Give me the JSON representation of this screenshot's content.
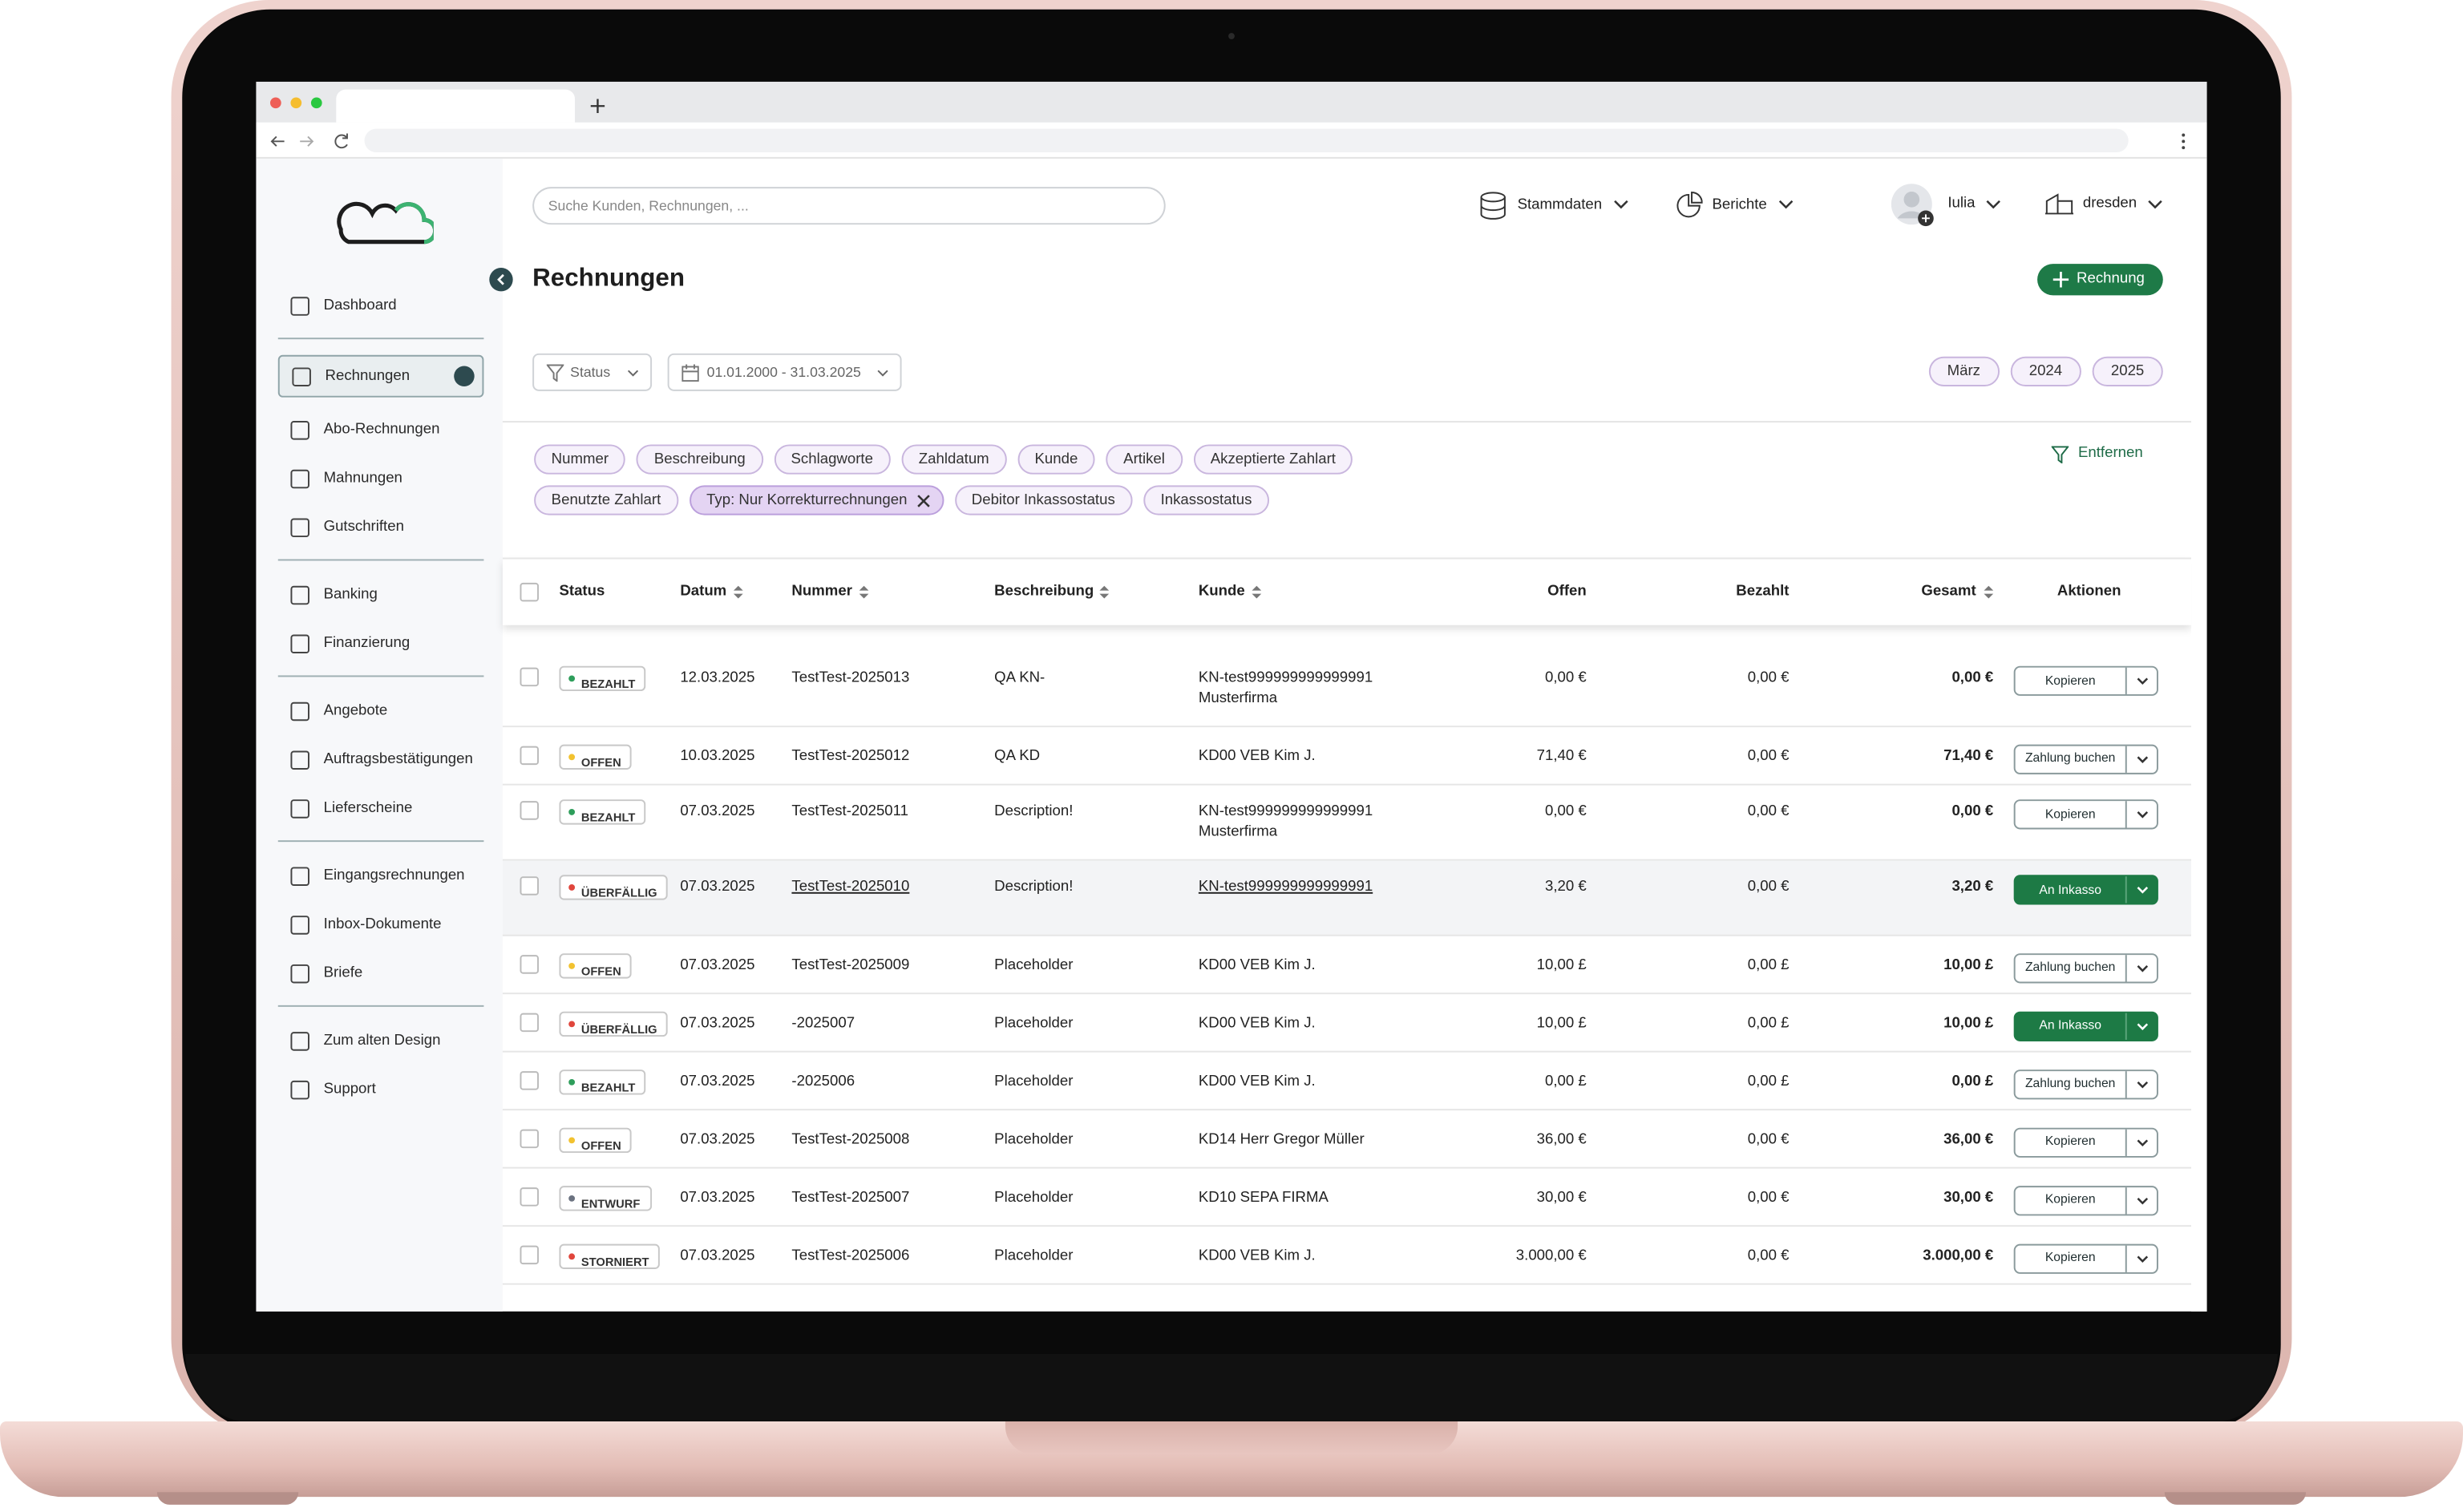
{
  "header": {
    "search_placeholder": "Suche Kunden, Rechnungen, ...",
    "menu": [
      "Stammdaten",
      "Berichte"
    ],
    "user": "Iulia",
    "company": "dresden"
  },
  "sidebar": {
    "groups": [
      [
        "Dashboard"
      ],
      [
        "Rechnungen",
        "Abo-Rechnungen",
        "Mahnungen",
        "Gutschriften"
      ],
      [
        "Banking",
        "Finanzierung"
      ],
      [
        "Angebote",
        "Auftragsbestätigungen",
        "Lieferscheine"
      ],
      [
        "Eingangsrechnungen",
        "Inbox-Dokumente",
        "Briefe"
      ],
      [
        "Zum alten Design",
        "Support"
      ]
    ],
    "active": "Rechnungen"
  },
  "page": {
    "title": "Rechnungen",
    "new_button": "Rechnung",
    "status_filter": "Status",
    "date_range": "01.01.2000 - 31.03.2025",
    "quick_periods": [
      "März",
      "2024",
      "2025"
    ],
    "filter_chips": [
      [
        {
          "label": "Nummer"
        },
        {
          "label": "Beschreibung"
        },
        {
          "label": "Schlagworte"
        },
        {
          "label": "Zahldatum"
        },
        {
          "label": "Kunde"
        },
        {
          "label": "Artikel"
        },
        {
          "label": "Akzeptierte Zahlart"
        }
      ],
      [
        {
          "label": "Benutzte Zahlart"
        },
        {
          "label": "Typ: Nur Korrekturrechnungen",
          "active": true
        },
        {
          "label": "Debitor Inkassostatus"
        },
        {
          "label": "Inkassostatus"
        }
      ]
    ],
    "remove_filters": "Entfernen"
  },
  "table": {
    "columns": [
      {
        "label": "Status"
      },
      {
        "label": "Datum",
        "sortable": true
      },
      {
        "label": "Nummer",
        "sortable": true
      },
      {
        "label": "Beschreibung",
        "sortable": true
      },
      {
        "label": "Kunde",
        "sortable": true
      },
      {
        "label": "Offen"
      },
      {
        "label": "Bezahlt"
      },
      {
        "label": "Gesamt",
        "sortable": true
      },
      {
        "label": "Aktionen"
      }
    ],
    "rows": [
      {
        "status": "BEZAHLT",
        "dot": "#2e9e5b",
        "datum": "12.03.2025",
        "nummer": "TestTest-2025013",
        "beschreibung": "QA KN-",
        "kunde": [
          "KN-test999999999999991",
          "Musterfirma"
        ],
        "offen": "0,00 €",
        "bezahlt": "0,00 €",
        "gesamt": "0,00 €",
        "aktion": "Kopieren"
      },
      {
        "status": "OFFEN",
        "dot": "#f2c230",
        "datum": "10.03.2025",
        "nummer": "TestTest-2025012",
        "beschreibung": "QA KD",
        "kunde": [
          "KD00 VEB Kim J."
        ],
        "offen": "71,40 €",
        "bezahlt": "0,00 €",
        "gesamt": "71,40 €",
        "aktion": "Zahlung buchen"
      },
      {
        "status": "BEZAHLT",
        "dot": "#2e9e5b",
        "datum": "07.03.2025",
        "nummer": "TestTest-2025011",
        "beschreibung": "Description!",
        "kunde": [
          "KN-test999999999999991",
          "Musterfirma"
        ],
        "offen": "0,00 €",
        "bezahlt": "0,00 €",
        "gesamt": "0,00 €",
        "aktion": "Kopieren"
      },
      {
        "status": "ÜBERFÄLLIG",
        "dot": "#e0463c",
        "datum": "07.03.2025",
        "nummer": "TestTest-2025010",
        "beschreibung": "Description!",
        "kunde": [
          "KN-test999999999999991"
        ],
        "offen": "3,20 €",
        "bezahlt": "0,00 €",
        "gesamt": "3,20 €",
        "aktion": "An Inkasso",
        "aktion_color": "#1d7a45",
        "row_color": "#f3f4f6",
        "underline": true
      },
      {
        "status": "OFFEN",
        "dot": "#f2c230",
        "datum": "07.03.2025",
        "nummer": "TestTest-2025009",
        "beschreibung": "Placeholder",
        "kunde": [
          "KD00 VEB Kim J."
        ],
        "offen": "10,00 £",
        "bezahlt": "0,00 £",
        "gesamt": "10,00 £",
        "aktion": "Zahlung buchen"
      },
      {
        "status": "ÜBERFÄLLIG",
        "dot": "#e0463c",
        "datum": "07.03.2025",
        "nummer": "-2025007",
        "beschreibung": "Placeholder",
        "kunde": [
          "KD00 VEB Kim J."
        ],
        "offen": "10,00 £",
        "bezahlt": "0,00 £",
        "gesamt": "10,00 £",
        "aktion": "An Inkasso",
        "aktion_color": "#1d7a45"
      },
      {
        "status": "BEZAHLT",
        "dot": "#2e9e5b",
        "datum": "07.03.2025",
        "nummer": "-2025006",
        "beschreibung": "Placeholder",
        "kunde": [
          "KD00 VEB Kim J."
        ],
        "offen": "0,00 £",
        "bezahlt": "0,00 £",
        "gesamt": "0,00 £",
        "aktion": "Zahlung buchen"
      },
      {
        "status": "OFFEN",
        "dot": "#f2c230",
        "datum": "07.03.2025",
        "nummer": "TestTest-2025008",
        "beschreibung": "Placeholder",
        "kunde": [
          "KD14 Herr Gregor Müller"
        ],
        "offen": "36,00 €",
        "bezahlt": "0,00 €",
        "gesamt": "36,00 €",
        "aktion": "Kopieren"
      },
      {
        "status": "ENTWURF",
        "dot": "#6b7280",
        "datum": "07.03.2025",
        "nummer": "TestTest-2025007",
        "beschreibung": "Placeholder",
        "kunde": [
          "KD10 SEPA FIRMA"
        ],
        "offen": "30,00 €",
        "bezahlt": "0,00 €",
        "gesamt": "30,00 €",
        "aktion": "Kopieren"
      },
      {
        "status": "STORNIERT",
        "dot": "#e0463c",
        "datum": "07.03.2025",
        "nummer": "TestTest-2025006",
        "beschreibung": "Placeholder",
        "kunde": [
          "KD00 VEB Kim J."
        ],
        "offen": "3.000,00 €",
        "bezahlt": "0,00 €",
        "gesamt": "3.000,00 €",
        "aktion": "Kopieren"
      }
    ]
  }
}
